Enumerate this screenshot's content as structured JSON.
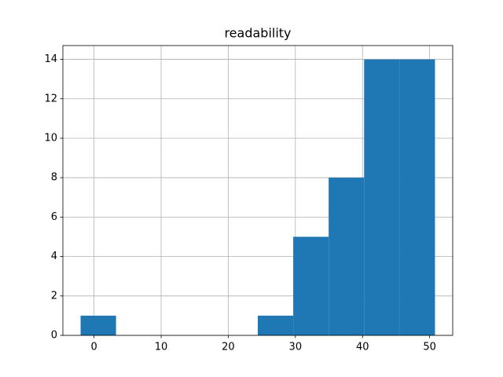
{
  "chart_data": {
    "type": "histogram",
    "title": "readability",
    "bins": [
      -2,
      3.28,
      8.56,
      13.84,
      19.12,
      24.4,
      29.68,
      34.96,
      40.24,
      45.52,
      50.8
    ],
    "values": [
      1,
      0,
      0,
      0,
      0,
      1,
      5,
      8,
      14,
      14
    ],
    "color": "#1f77b4",
    "xlim": [
      -4.64,
      53.44
    ],
    "xticks": [
      0,
      10,
      20,
      30,
      40,
      50
    ],
    "ylim": [
      0,
      14.7
    ],
    "yticks": [
      0,
      2,
      4,
      6,
      8,
      10,
      12,
      14
    ],
    "grid": true
  }
}
